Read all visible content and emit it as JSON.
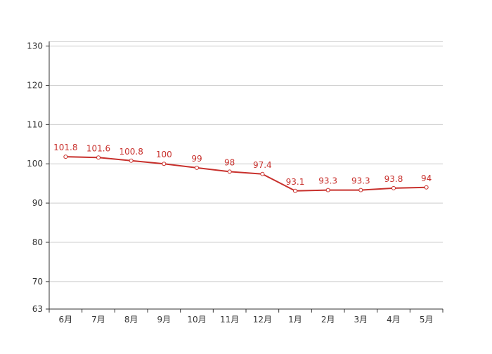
{
  "chart_data": {
    "type": "line",
    "title": "",
    "xlabel": "",
    "ylabel": "",
    "categories": [
      "6月",
      "7月",
      "8月",
      "9月",
      "10月",
      "11月",
      "12月",
      "1月",
      "2月",
      "3月",
      "4月",
      "5月"
    ],
    "series": [
      {
        "values": [
          101.8,
          101.6,
          100.8,
          100,
          99,
          98,
          97.4,
          93.1,
          93.3,
          93.3,
          93.8,
          94
        ],
        "color": "#c8302c",
        "data_labels": [
          "101.8",
          "101.6",
          "100.8",
          "100",
          "99",
          "98",
          "97.4",
          "93.1",
          "93.3",
          "93.3",
          "93.8",
          "94"
        ]
      }
    ],
    "ylim": [
      63,
      131
    ],
    "yticks": [
      63,
      70,
      80,
      90,
      100,
      110,
      120,
      130
    ],
    "grid": true,
    "legend": "none"
  },
  "colors": {
    "series": "#c8302c",
    "grid": "#cccccc",
    "axis": "#333333",
    "text": "#333333",
    "marker_fill": "#ffffff"
  }
}
